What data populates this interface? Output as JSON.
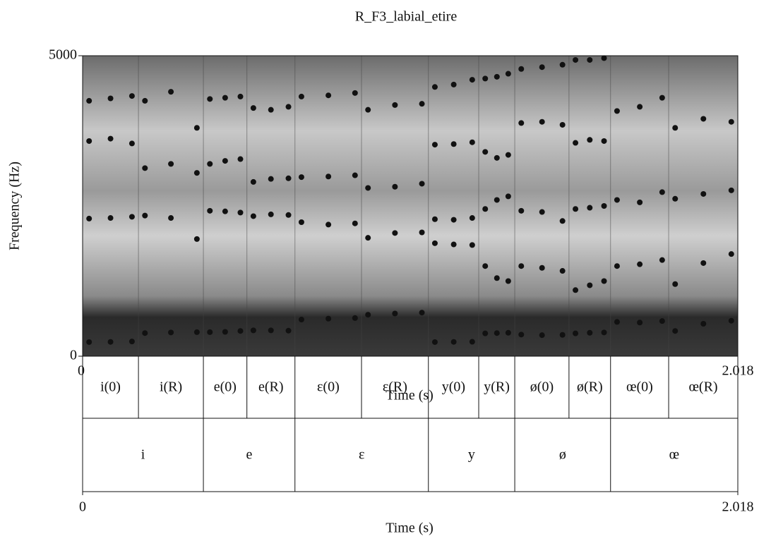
{
  "chart_data": {
    "type": "scatter",
    "title": "R_F3_labial_etire",
    "xlabel": "Time (s)",
    "ylabel": "Frequency (Hz)",
    "xlim": [
      0,
      2.018
    ],
    "ylim": [
      0,
      5000
    ],
    "xticks": [
      0,
      2.018
    ],
    "yticks": [
      0,
      5000
    ],
    "x": [
      0.02,
      0.086,
      0.152,
      0.192,
      0.272,
      0.352,
      0.392,
      0.439,
      0.486,
      0.526,
      0.58,
      0.634,
      0.674,
      0.757,
      0.839,
      0.879,
      0.962,
      1.045,
      1.085,
      1.143,
      1.2,
      1.24,
      1.276,
      1.311,
      1.351,
      1.415,
      1.478,
      1.518,
      1.562,
      1.606,
      1.646,
      1.716,
      1.785,
      1.825,
      1.912,
      1.998
    ],
    "series": [
      {
        "color": "#111111",
        "values": [
          235,
          238,
          245,
          385,
          395,
          400,
          400,
          405,
          420,
          430,
          430,
          425,
          610,
          625,
          635,
          690,
          710,
          725,
          235,
          238,
          240,
          380,
          385,
          390,
          360,
          350,
          355,
          380,
          390,
          395,
          570,
          560,
          585,
          420,
          540,
          590
        ]
      },
      {
        "color": "#111111",
        "values": [
          2290,
          2300,
          2320,
          2340,
          2300,
          1950,
          2420,
          2410,
          2390,
          2330,
          2360,
          2350,
          2230,
          2190,
          2210,
          1970,
          2050,
          2060,
          1880,
          1860,
          1850,
          1500,
          1300,
          1250,
          1500,
          1470,
          1420,
          1100,
          1180,
          1250,
          1500,
          1530,
          1600,
          1200,
          1550,
          1700
        ]
      },
      {
        "color": "#111111",
        "values": [
          3580,
          3620,
          3540,
          3130,
          3200,
          3050,
          3200,
          3250,
          3280,
          2900,
          2950,
          2960,
          2980,
          2990,
          3010,
          2800,
          2820,
          2870,
          2280,
          2270,
          2300,
          2450,
          2600,
          2660,
          2420,
          2400,
          2250,
          2450,
          2470,
          2500,
          2600,
          2560,
          2730,
          2620,
          2700,
          2760
        ]
      },
      {
        "color": "#111111",
        "values": [
          4250,
          4290,
          4330,
          4250,
          4400,
          3800,
          4280,
          4300,
          4320,
          4130,
          4100,
          4150,
          4320,
          4340,
          4380,
          4100,
          4180,
          4200,
          3520,
          3530,
          3560,
          3400,
          3300,
          3350,
          3880,
          3900,
          3850,
          3550,
          3600,
          3580,
          4080,
          4150,
          4300,
          3800,
          3950,
          3900
        ]
      },
      {
        "color": "#111111",
        "values": [
          null,
          null,
          null,
          null,
          null,
          null,
          null,
          null,
          null,
          null,
          null,
          null,
          null,
          null,
          null,
          null,
          null,
          null,
          4480,
          4520,
          4600,
          4620,
          4650,
          4700,
          4780,
          4810,
          4850,
          4930,
          4930,
          4960,
          null,
          null,
          null,
          null,
          null,
          null
        ]
      }
    ]
  },
  "textgrid": {
    "xlabel": "Time (s)",
    "xlim": [
      0,
      2.018
    ],
    "xticks": [
      0,
      2.018
    ],
    "tiers": [
      {
        "intervals": [
          {
            "label": "i(0)",
            "start": 0,
            "end": 0.172
          },
          {
            "label": "i(R)",
            "start": 0.172,
            "end": 0.372
          },
          {
            "label": "e(0)",
            "start": 0.372,
            "end": 0.506
          },
          {
            "label": "e(R)",
            "start": 0.506,
            "end": 0.654
          },
          {
            "label": "ɛ(0)",
            "start": 0.654,
            "end": 0.859
          },
          {
            "label": "ɛ(R)",
            "start": 0.859,
            "end": 1.065
          },
          {
            "label": "y(0)",
            "start": 1.065,
            "end": 1.22
          },
          {
            "label": "y(R)",
            "start": 1.22,
            "end": 1.331
          },
          {
            "label": "ø(0)",
            "start": 1.331,
            "end": 1.498
          },
          {
            "label": "ø(R)",
            "start": 1.498,
            "end": 1.626
          },
          {
            "label": "œ(0)",
            "start": 1.626,
            "end": 1.805
          },
          {
            "label": "œ(R)",
            "start": 1.805,
            "end": 2.018
          }
        ]
      },
      {
        "intervals": [
          {
            "label": "i",
            "start": 0,
            "end": 0.372
          },
          {
            "label": "e",
            "start": 0.372,
            "end": 0.654
          },
          {
            "label": "ɛ",
            "start": 0.654,
            "end": 1.065
          },
          {
            "label": "y",
            "start": 1.065,
            "end": 1.331
          },
          {
            "label": "ø",
            "start": 1.331,
            "end": 1.626
          },
          {
            "label": "œ",
            "start": 1.626,
            "end": 2.018
          }
        ]
      }
    ]
  }
}
